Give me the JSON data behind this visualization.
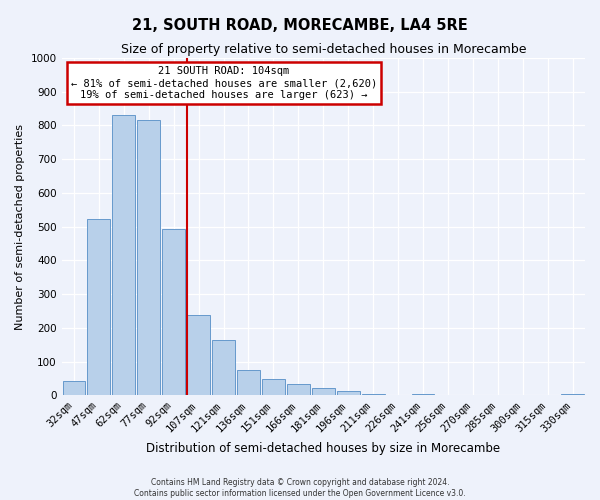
{
  "title": "21, SOUTH ROAD, MORECAMBE, LA4 5RE",
  "subtitle": "Size of property relative to semi-detached houses in Morecambe",
  "xlabel": "Distribution of semi-detached houses by size in Morecambe",
  "ylabel": "Number of semi-detached properties",
  "bar_labels": [
    "32sqm",
    "47sqm",
    "62sqm",
    "77sqm",
    "92sqm",
    "107sqm",
    "121sqm",
    "136sqm",
    "151sqm",
    "166sqm",
    "181sqm",
    "196sqm",
    "211sqm",
    "226sqm",
    "241sqm",
    "256sqm",
    "270sqm",
    "285sqm",
    "300sqm",
    "315sqm",
    "330sqm"
  ],
  "bar_values": [
    43,
    522,
    830,
    815,
    493,
    237,
    163,
    75,
    48,
    32,
    20,
    13,
    5,
    0,
    5,
    0,
    0,
    0,
    0,
    0,
    5
  ],
  "bar_color": "#b8d0ea",
  "bar_edge_color": "#6699cc",
  "vline_index": 5,
  "vline_color": "#cc0000",
  "annotation_title": "21 SOUTH ROAD: 104sqm",
  "annotation_line1": "← 81% of semi-detached houses are smaller (2,620)",
  "annotation_line2": "19% of semi-detached houses are larger (623) →",
  "annotation_box_color": "white",
  "annotation_box_edge": "#cc0000",
  "ylim": [
    0,
    1000
  ],
  "yticks": [
    0,
    100,
    200,
    300,
    400,
    500,
    600,
    700,
    800,
    900,
    1000
  ],
  "footer_line1": "Contains HM Land Registry data © Crown copyright and database right 2024.",
  "footer_line2": "Contains public sector information licensed under the Open Government Licence v3.0.",
  "bg_color": "#eef2fb",
  "grid_color": "#ffffff",
  "title_fontsize": 10.5,
  "subtitle_fontsize": 9,
  "axis_label_fontsize": 8.5,
  "tick_fontsize": 7.5,
  "footer_fontsize": 5.5
}
